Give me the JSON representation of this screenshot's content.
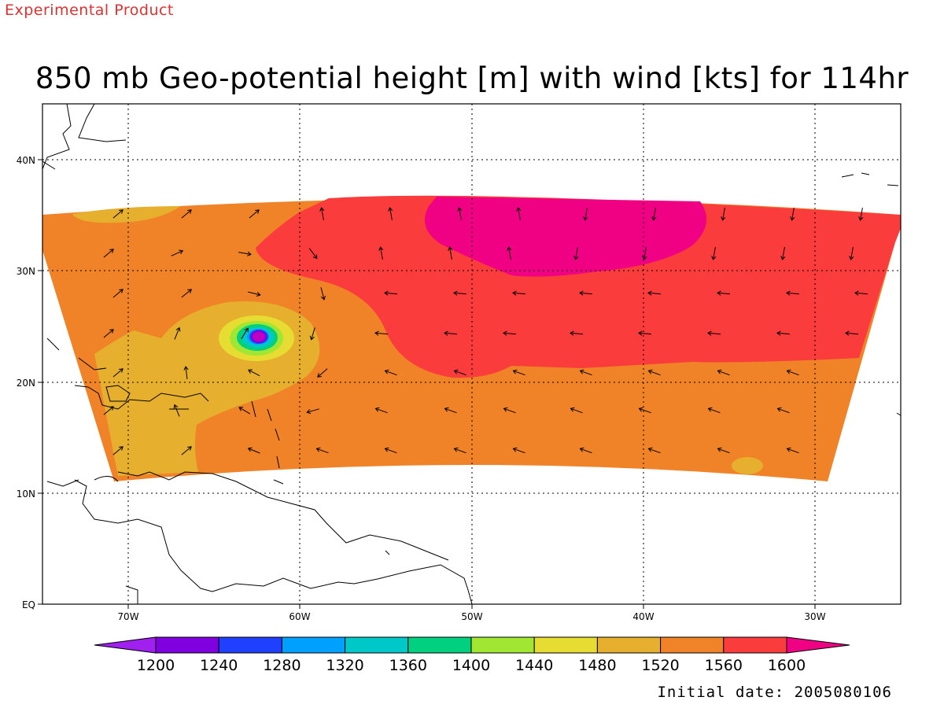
{
  "header": {
    "product_label": "Experimental Product"
  },
  "map": {
    "title": "850 mb Geo-potential height [m] with wind [kts] for 114hr",
    "initial_date": "Initial date: 2005080106",
    "lon_labels": [
      "70W",
      "60W",
      "50W",
      "40W",
      "30W"
    ],
    "lat_labels": [
      "40N",
      "30N",
      "20N",
      "10N",
      "EQ"
    ],
    "shaded_variable": "850 mb geopotential height (m)",
    "vector_variable": "wind (kts)",
    "cyclone_center": {
      "lon": -62.5,
      "lat": 24.0,
      "min_height_m": 1200
    }
  },
  "colorbar": {
    "labels": [
      "1200",
      "1240",
      "1280",
      "1320",
      "1360",
      "1400",
      "1440",
      "1480",
      "1520",
      "1560",
      "1600"
    ],
    "colors": [
      "#a020f0",
      "#8000e0",
      "#2040ff",
      "#00a0ff",
      "#00c8c8",
      "#00d080",
      "#a0e632",
      "#e6dc32",
      "#e6af2d",
      "#f08228",
      "#fa3c3c",
      "#f00082"
    ]
  }
}
